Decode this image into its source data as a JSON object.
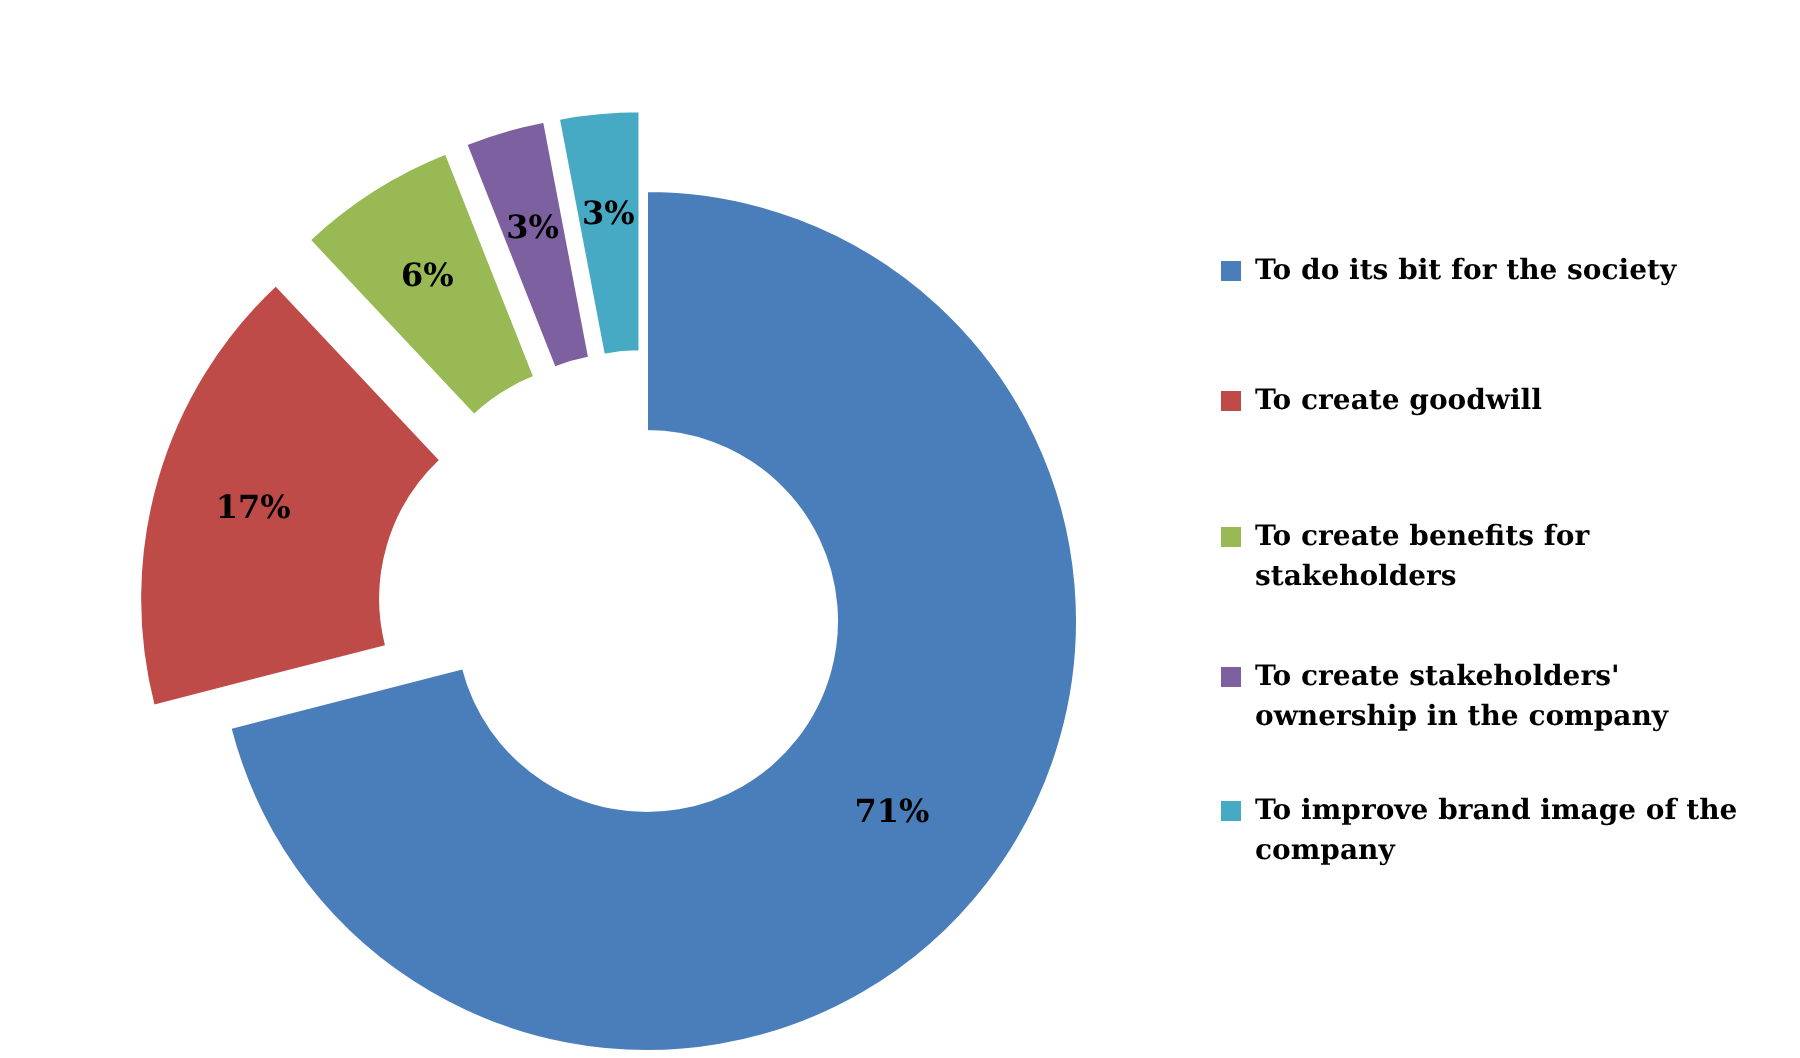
{
  "chart_data": {
    "type": "donut",
    "categories": [
      "To do its bit for the society",
      "To create goodwill",
      "To create benefits for stakeholders",
      "To create stakeholders' ownership in the company",
      "To improve brand image of the company"
    ],
    "values": [
      71,
      17,
      6,
      3,
      3
    ],
    "colors": [
      "#4a7ebb",
      "#be4b48",
      "#98b954",
      "#7d60a0",
      "#46aac5"
    ],
    "value_labels": [
      "71%",
      "17%",
      "6%",
      "3%",
      "3%"
    ],
    "legend": "right"
  }
}
